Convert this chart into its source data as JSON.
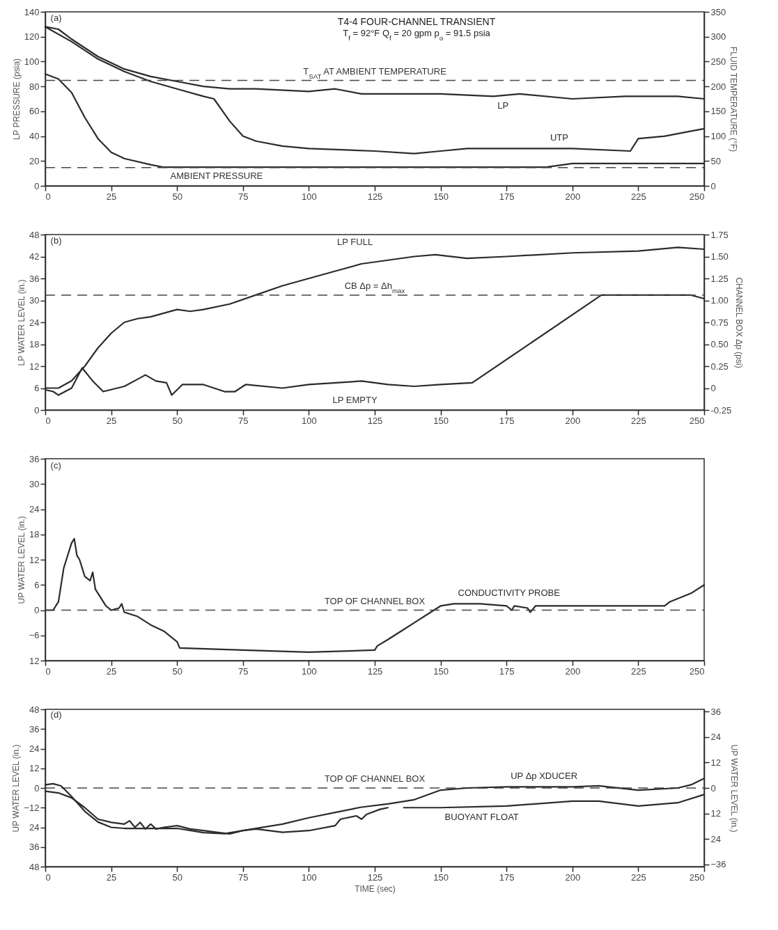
{
  "chart_data": [
    {
      "type": "line",
      "title": "T4-4 FOUR-CHANNEL TRANSIENT",
      "subtitle": "T$_{f}$ = 92°F     Q$_{f}$ = 20 gpm  p$_{o}$ = 91.5 psia",
      "ylabel": "LP PRESSURE (psia)",
      "y2label": "FLUID TEMPERATURE (°F)",
      "xlim": [
        0,
        250
      ],
      "xticks": [
        0,
        25,
        50,
        75,
        100,
        125,
        150,
        175,
        200,
        225,
        250
      ],
      "ylim": [
        0,
        140
      ],
      "yticks": [
        0,
        20,
        40,
        60,
        80,
        100,
        120,
        140
      ],
      "y2lim": [
        0,
        350
      ],
      "y2ticks": [
        0,
        50,
        100,
        150,
        200,
        250,
        300,
        350
      ],
      "series": [
        {
          "color": "#2b2b2b",
          "x": [
            0,
            5,
            10,
            15,
            20,
            25,
            30,
            40,
            45,
            100,
            150,
            190,
            200,
            220,
            240,
            250
          ],
          "values": [
            90,
            86,
            75,
            55,
            38,
            27,
            22,
            17,
            15,
            15,
            15,
            15,
            18,
            18,
            18,
            18
          ]
        },
        {
          "name": "LP",
          "color": "#2b2b2b",
          "axis": "y2",
          "x": [
            0,
            5,
            10,
            20,
            30,
            40,
            50,
            60,
            70,
            80,
            100,
            110,
            120,
            130,
            150,
            170,
            180,
            200,
            220,
            240,
            250
          ],
          "values": [
            320,
            315,
            295,
            260,
            235,
            220,
            210,
            200,
            195,
            195,
            190,
            195,
            185,
            185,
            185,
            180,
            185,
            175,
            180,
            180,
            175
          ]
        },
        {
          "name": "UTP",
          "color": "#2b2b2b",
          "axis": "y2",
          "x": [
            0,
            10,
            20,
            30,
            40,
            50,
            60,
            64,
            70,
            75,
            80,
            90,
            100,
            125,
            140,
            150,
            160,
            175,
            190,
            200,
            222,
            225,
            235,
            245,
            250
          ],
          "values": [
            320,
            290,
            255,
            230,
            210,
            195,
            180,
            175,
            130,
            100,
            90,
            80,
            75,
            70,
            65,
            70,
            75,
            75,
            75,
            75,
            70,
            95,
            100,
            110,
            115
          ]
        }
      ],
      "ref_lines": [
        {
          "axis": "y2",
          "value": 212,
          "label": "T$_{SAT}$ AT AMBIENT TEMPERATURE",
          "line_style": "dashed"
        },
        {
          "axis": "y",
          "value": 14.7,
          "label": "AMBIENT PRESSURE",
          "line_style": "dashed"
        }
      ],
      "annotations": [
        "(a)"
      ]
    },
    {
      "type": "line",
      "ylabel": "LP WATER LEVEL (in.)",
      "y2label": "CHANNEL BOX Δp (psi)",
      "xlim": [
        0,
        250
      ],
      "xticks": [
        0,
        25,
        50,
        75,
        100,
        125,
        150,
        175,
        200,
        225,
        250
      ],
      "ylim": [
        0,
        48
      ],
      "yticks": [
        0,
        6,
        12,
        18,
        24,
        30,
        36,
        42,
        48
      ],
      "y2lim": [
        -0.25,
        1.75
      ],
      "y2ticks": [
        {
          "value": -0.25,
          "label": "-0.25"
        },
        {
          "value": 0,
          "label": "0"
        },
        {
          "value": 0.25,
          "label": "0.25"
        },
        {
          "value": 0.5,
          "label": "0.50"
        },
        {
          "value": 0.75,
          "label": "0.75"
        },
        {
          "value": 1,
          "label": "1.00"
        },
        {
          "value": 1.25,
          "label": "1.25"
        },
        {
          "value": 1.5,
          "label": "1.50"
        },
        {
          "value": 1.75,
          "label": "1.75"
        }
      ],
      "series": [
        {
          "color": "#2b2b2b",
          "x": [
            0,
            5,
            10,
            15,
            20,
            25,
            30,
            35,
            40,
            45,
            50,
            55,
            60,
            70,
            80,
            90,
            100,
            110,
            120,
            130,
            140,
            148,
            160,
            175,
            200,
            225,
            240,
            250
          ],
          "values": [
            6,
            6,
            8,
            12,
            17,
            21,
            24,
            25,
            25.5,
            26.5,
            27.5,
            27,
            27.5,
            29,
            31.5,
            34,
            36,
            38,
            40,
            41,
            42,
            42.5,
            41.5,
            42,
            43,
            43.5,
            44.5,
            44
          ]
        },
        {
          "color": "#2b2b2b",
          "axis": "y2",
          "x": [
            0,
            3,
            5,
            10,
            14,
            18,
            22,
            30,
            35,
            38,
            42,
            46,
            48,
            52,
            60,
            68,
            72,
            76,
            90,
            100,
            120,
            130,
            140,
            150,
            162,
            211,
            245,
            250
          ],
          "values": [
            -0.02,
            -0.04,
            -0.08,
            0,
            0.23,
            0.08,
            -0.04,
            0.02,
            0.1,
            0.15,
            0.08,
            0.06,
            -0.08,
            0.04,
            0.04,
            -0.04,
            -0.04,
            0.04,
            0,
            0.04,
            0.08,
            0.04,
            0.02,
            0.04,
            0.06,
            1.06,
            1.06,
            1.02
          ]
        }
      ],
      "ref_lines": [
        {
          "axis": "y2",
          "value": 1.06,
          "label": "CB Δp = Δh$_{max}$",
          "line_style": "dashed"
        }
      ],
      "annotations": [
        "(b)",
        "LP FULL",
        "LP EMPTY"
      ]
    },
    {
      "type": "line",
      "ylabel": "UP WATER LEVEL (in.)",
      "xlim": [
        0,
        250
      ],
      "xticks": [
        0,
        25,
        50,
        75,
        100,
        125,
        150,
        175,
        200,
        225,
        250
      ],
      "ylim": [
        -12,
        36
      ],
      "yticks": [
        {
          "value": -12,
          "label": "12"
        },
        -6,
        0,
        6,
        12,
        18,
        24,
        30,
        36
      ],
      "series": [
        {
          "name": "CONDUCTIVITY PROBE",
          "color": "#2b2b2b",
          "x": [
            0,
            3,
            5,
            7,
            8,
            9,
            10,
            11,
            12,
            13,
            15,
            17,
            18,
            19,
            21,
            23,
            25,
            28,
            29,
            30,
            35,
            40,
            45,
            49,
            50,
            51,
            75,
            100,
            125,
            126,
            130,
            135,
            140,
            145,
            150,
            155,
            165,
            175,
            177,
            178,
            183,
            184,
            186,
            200,
            225,
            235,
            237,
            245,
            250
          ],
          "values": [
            0,
            0,
            2,
            10,
            12,
            14,
            16,
            17,
            13,
            12,
            8,
            7,
            9,
            5,
            3,
            1,
            0,
            0.5,
            1.5,
            -0.5,
            -1.5,
            -3.5,
            -5,
            -7,
            -7.5,
            -9,
            -9.5,
            -10,
            -9.5,
            -8.5,
            -7,
            -5,
            -3,
            -1,
            1,
            1.5,
            1.5,
            1,
            0,
            1,
            0.5,
            -0.5,
            1,
            1,
            1,
            1,
            2,
            4,
            6
          ]
        }
      ],
      "ref_lines": [
        {
          "axis": "y",
          "value": 0,
          "label": "TOP OF CHANNEL BOX",
          "line_style": "dashed"
        }
      ],
      "annotations": [
        "(c)"
      ]
    },
    {
      "type": "line",
      "xlabel": "TIME (sec)",
      "ylabel": "UP WATER LEVEL (in.)",
      "y2label": "UP WATER LEVEL (in.)",
      "xlim": [
        0,
        250
      ],
      "xticks": [
        0,
        25,
        50,
        75,
        100,
        125,
        150,
        175,
        200,
        225,
        250
      ],
      "ylim": [
        -48,
        48
      ],
      "yticks": [
        {
          "value": -48,
          "label": "48"
        },
        {
          "value": -36,
          "label": "36"
        },
        {
          "value": -24,
          "label": "24"
        },
        -12,
        0,
        12,
        24,
        36,
        48
      ],
      "y2lim": [
        -37,
        37
      ],
      "y2ticks": [
        -36,
        {
          "value": -24,
          "label": "24"
        },
        {
          "value": -12,
          "label": "12"
        },
        0,
        12,
        24,
        36
      ],
      "series": [
        {
          "name": "BUOYANT FLOAT",
          "color": "#2b2b2b",
          "x": [
            0,
            5,
            10,
            15,
            20,
            25,
            30,
            32,
            34,
            36,
            38,
            40,
            42,
            45,
            50,
            55,
            60,
            65,
            70,
            75,
            80,
            90,
            100,
            110,
            112,
            118,
            120,
            122,
            127,
            130,
            133,
            136,
            150,
            175,
            200,
            210,
            225,
            240,
            250
          ],
          "values": [
            -2,
            -3,
            -6,
            -12,
            -19,
            -21,
            -22,
            -20,
            -24,
            -21,
            -25,
            -22,
            -25,
            -24,
            -23,
            -25,
            -26,
            -27,
            -28,
            -26,
            -25,
            -27,
            -26,
            -23,
            -19,
            -17,
            -19,
            -16,
            -13,
            -12,
            null,
            -12,
            -12,
            -11,
            -8,
            -8,
            -11,
            -9,
            -4
          ]
        },
        {
          "name": "UP Δp XDUCER",
          "color": "#2b2b2b",
          "axis": "y2",
          "x": [
            0,
            3,
            6,
            10,
            15,
            20,
            25,
            30,
            40,
            50,
            60,
            68,
            75,
            90,
            100,
            110,
            120,
            130,
            140,
            150,
            160,
            175,
            200,
            210,
            225,
            240,
            245,
            250
          ],
          "values": [
            1.5,
            2,
            1,
            -4,
            -11,
            -16,
            -18.5,
            -19,
            -19,
            -19,
            -21,
            -21.5,
            -20,
            -17,
            -14,
            -11.5,
            -9,
            -7.5,
            -5.5,
            -1,
            0,
            0.5,
            0.5,
            1,
            -1,
            0,
            1.5,
            4.5
          ]
        }
      ],
      "ref_lines": [
        {
          "axis": "y",
          "value": 0,
          "label": "TOP OF CHANNEL BOX",
          "line_style": "dashed"
        }
      ],
      "annotations": [
        "(d)"
      ]
    }
  ]
}
